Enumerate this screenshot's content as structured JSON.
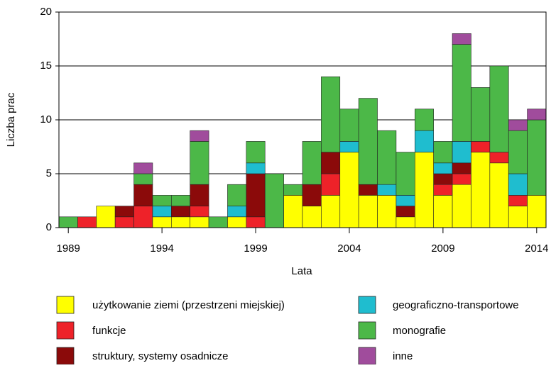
{
  "chart_data": {
    "type": "stacked_bar",
    "y_label": "Liczba prac",
    "x_label": "Lata",
    "categories": [
      "1989",
      null,
      null,
      null,
      null,
      "1994",
      null,
      null,
      null,
      null,
      "1999",
      null,
      null,
      null,
      null,
      "2004",
      null,
      null,
      null,
      null,
      "2009",
      null,
      null,
      null,
      null,
      "2014"
    ],
    "series": [
      {
        "name": "użytkowanie ziemi (przestrzeni miejskiej)",
        "color": "#ffff00",
        "values": [
          0,
          0,
          2,
          0,
          0,
          1,
          1,
          1,
          0,
          1,
          0,
          0,
          3,
          2,
          3,
          7,
          3,
          3,
          1,
          7,
          3,
          4,
          7,
          6,
          2,
          3
        ]
      },
      {
        "name": "funkcje",
        "color": "#ee2229",
        "values": [
          0,
          1,
          0,
          1,
          2,
          0,
          0,
          1,
          0,
          0,
          1,
          0,
          0,
          0,
          2,
          0,
          0,
          0,
          0,
          0,
          1,
          1,
          1,
          1,
          1,
          0
        ]
      },
      {
        "name": "struktury, systemy osadnicze",
        "color": "#8b0a0a",
        "values": [
          0,
          0,
          0,
          1,
          2,
          0,
          1,
          2,
          0,
          0,
          4,
          0,
          0,
          2,
          2,
          0,
          1,
          0,
          1,
          0,
          1,
          1,
          0,
          0,
          0,
          0
        ]
      },
      {
        "name": "geograficzno-transportowe",
        "color": "#1fbdcf",
        "values": [
          0,
          0,
          0,
          0,
          0,
          1,
          0,
          0,
          0,
          1,
          1,
          0,
          0,
          0,
          0,
          1,
          0,
          1,
          1,
          2,
          1,
          2,
          0,
          0,
          2,
          0
        ]
      },
      {
        "name": "monografie",
        "color": "#4cb848",
        "values": [
          1,
          0,
          0,
          0,
          1,
          1,
          1,
          4,
          1,
          2,
          2,
          5,
          1,
          4,
          7,
          3,
          8,
          5,
          4,
          2,
          2,
          9,
          5,
          8,
          4,
          7
        ]
      },
      {
        "name": "inne",
        "color": "#a04c9c",
        "values": [
          0,
          0,
          0,
          0,
          1,
          0,
          0,
          1,
          0,
          0,
          0,
          0,
          0,
          0,
          0,
          0,
          0,
          0,
          0,
          0,
          0,
          1,
          0,
          0,
          1,
          1
        ]
      }
    ],
    "ylim": [
      0,
      20
    ],
    "yticks": [
      0,
      5,
      10,
      15,
      20
    ],
    "grid": true
  }
}
